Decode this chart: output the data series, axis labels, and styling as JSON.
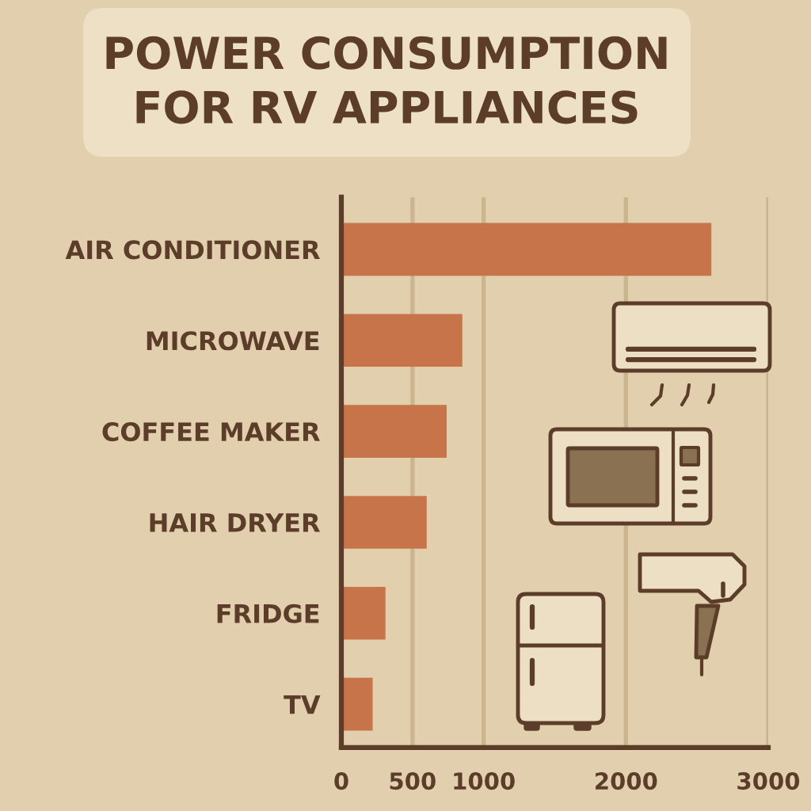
{
  "chart_data": {
    "type": "bar",
    "orientation": "horizontal",
    "title": "POWER CONSUMPTION\nFOR RV APPLIANCES",
    "categories": [
      "AIR CONDITIONER",
      "MICROWAVE",
      "COFFEE MAKER",
      "HAIR DRYER",
      "FRIDGE",
      "TV"
    ],
    "values": [
      2600,
      850,
      740,
      600,
      310,
      220
    ],
    "color": "#c8744a",
    "xlim": [
      0,
      3000
    ],
    "xticks": [
      0,
      500,
      1000,
      2000,
      3000
    ],
    "grid": "x"
  }
}
